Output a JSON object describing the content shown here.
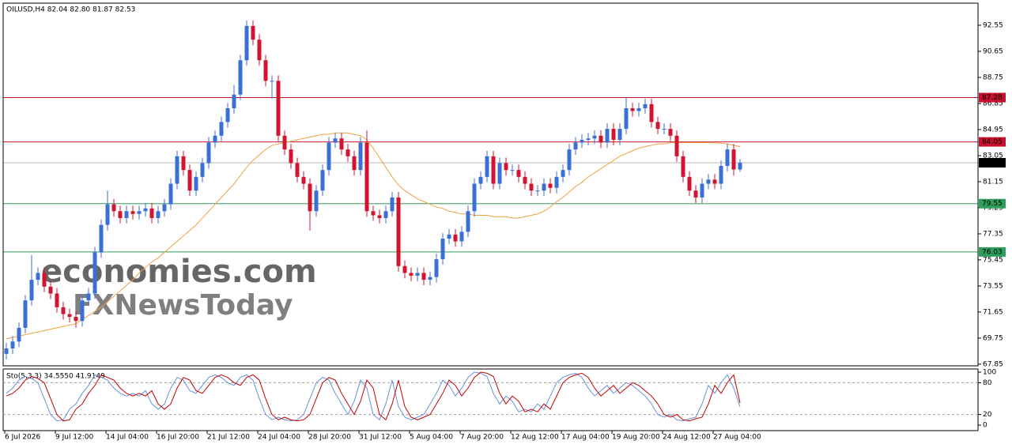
{
  "chart_data": {
    "type": "candlestick",
    "title": "OILUSD,H4  82.04 82.80 81.87 82.53",
    "watermark": [
      "economies.com",
      "FXNewsToday"
    ],
    "categories": [
      "6 Jul 2026",
      null,
      null,
      null,
      null,
      null,
      null,
      null,
      "9 Jul 12:00",
      null,
      null,
      null,
      null,
      null,
      null,
      null,
      "14 Jul 04:00",
      null,
      null,
      null,
      null,
      null,
      null,
      null,
      "16 Jul 20:00",
      null,
      null,
      null,
      null,
      null,
      null,
      null,
      "21 Jul 12:00",
      null,
      null,
      null,
      null,
      null,
      null,
      null,
      "24 Jul 04:00",
      null,
      null,
      null,
      null,
      null,
      null,
      null,
      "28 Jul 20:00",
      null,
      null,
      null,
      null,
      null,
      null,
      null,
      "31 Jul 12:00",
      null,
      null,
      null,
      null,
      null,
      null,
      null,
      "5 Aug 04:00",
      null,
      null,
      null,
      null,
      null,
      null,
      null,
      "7 Aug 20:00",
      null,
      null,
      null,
      null,
      null,
      null,
      null,
      "12 Aug 12:00",
      null,
      null,
      null,
      null,
      null,
      null,
      null,
      "17 Aug 04:00",
      null,
      null,
      null,
      null,
      null,
      null,
      null,
      "19 Aug 20:00",
      null,
      null,
      null,
      null,
      null,
      null,
      null,
      "24 Aug 12:00",
      null,
      null,
      null,
      null,
      null,
      null,
      null,
      "27 Aug 04:00",
      null,
      null,
      null,
      null
    ],
    "open": [
      68.6,
      69.0,
      69.5,
      70.5,
      72.5,
      74.0,
      74.5,
      73.5,
      73.0,
      72.0,
      71.5,
      71.3,
      71.0,
      72.5,
      73.0,
      76.0,
      78.0,
      79.5,
      79.0,
      78.5,
      79.0,
      78.8,
      79.0,
      79.2,
      78.5,
      79.0,
      79.5,
      81.0,
      83.0,
      82.0,
      80.5,
      81.5,
      82.5,
      84.0,
      84.5,
      85.5,
      86.5,
      87.5,
      90.0,
      92.5,
      91.5,
      90.0,
      88.5,
      88.5,
      84.5,
      83.5,
      82.5,
      81.5,
      81.0,
      79.0,
      80.5,
      82.0,
      84.0,
      84.3,
      83.5,
      83.0,
      82.0,
      84.0,
      79.0,
      78.7,
      78.5,
      79.0,
      80.0,
      75.0,
      74.5,
      74.3,
      74.5,
      74.0,
      74.2,
      75.5,
      77.0,
      77.3,
      76.8,
      77.5,
      79.0,
      81.0,
      81.5,
      83.0,
      81.0,
      82.5,
      82.0,
      82.0,
      81.5,
      81.0,
      80.5,
      80.5,
      81.0,
      80.7,
      81.5,
      82.0,
      83.5,
      84.0,
      84.2,
      84.3,
      84.5,
      84.0,
      85.0,
      84.2,
      85.0,
      86.5,
      86.3,
      86.5,
      86.8,
      85.5,
      85.0,
      85.0,
      84.5,
      83.0,
      81.5,
      80.5,
      80.0,
      81.0,
      81.3,
      81.0,
      82.3,
      83.5,
      82.04
    ],
    "high": [
      69.4,
      69.9,
      70.9,
      72.9,
      75.8,
      74.9,
      74.9,
      73.9,
      73.4,
      72.4,
      71.9,
      71.7,
      72.9,
      73.4,
      76.4,
      78.4,
      80.5,
      79.9,
      79.4,
      79.4,
      79.4,
      79.4,
      79.6,
      79.6,
      79.4,
      79.9,
      81.4,
      83.4,
      83.4,
      82.4,
      81.9,
      82.9,
      84.4,
      84.9,
      85.9,
      86.9,
      88.2,
      90.4,
      92.9,
      92.9,
      91.9,
      90.4,
      88.9,
      88.9,
      84.9,
      83.9,
      82.9,
      81.9,
      81.4,
      80.9,
      82.4,
      84.4,
      84.7,
      84.7,
      83.9,
      83.4,
      84.4,
      84.9,
      79.4,
      79.1,
      79.4,
      80.4,
      80.4,
      75.4,
      74.9,
      74.9,
      74.9,
      74.6,
      75.9,
      77.4,
      77.7,
      77.7,
      77.9,
      79.4,
      81.4,
      81.9,
      83.4,
      83.4,
      82.9,
      82.9,
      82.4,
      82.4,
      81.9,
      81.4,
      80.9,
      81.4,
      81.4,
      81.9,
      82.4,
      83.9,
      84.4,
      84.6,
      84.7,
      84.9,
      84.9,
      85.4,
      85.4,
      85.4,
      87.3,
      86.9,
      86.9,
      87.2,
      87.2,
      85.9,
      85.4,
      85.4,
      84.9,
      83.4,
      81.9,
      80.9,
      81.4,
      81.7,
      81.7,
      82.7,
      83.9,
      83.9,
      82.8
    ],
    "low": [
      68.2,
      68.6,
      69.1,
      70.1,
      72.1,
      73.6,
      73.1,
      72.6,
      71.6,
      71.1,
      70.9,
      70.5,
      70.6,
      72.1,
      72.6,
      75.6,
      77.6,
      78.6,
      78.1,
      78.1,
      78.4,
      78.4,
      78.6,
      78.1,
      78.1,
      78.6,
      79.1,
      80.6,
      81.6,
      80.1,
      80.1,
      81.1,
      82.1,
      83.6,
      84.1,
      85.1,
      86.1,
      87.1,
      89.6,
      91.1,
      89.6,
      88.1,
      87.2,
      84.1,
      83.1,
      82.1,
      81.1,
      80.6,
      77.6,
      78.6,
      80.1,
      81.6,
      83.6,
      83.1,
      82.6,
      81.6,
      81.6,
      78.6,
      78.3,
      78.1,
      78.1,
      78.6,
      74.6,
      74.1,
      73.9,
      73.9,
      73.6,
      73.6,
      73.8,
      75.1,
      76.6,
      76.4,
      76.4,
      77.1,
      78.6,
      80.6,
      81.1,
      80.6,
      80.6,
      81.6,
      81.6,
      81.1,
      80.6,
      80.1,
      80.1,
      80.1,
      80.3,
      80.3,
      81.1,
      81.6,
      83.1,
      83.6,
      83.8,
      83.9,
      83.6,
      83.6,
      83.8,
      83.8,
      84.6,
      85.9,
      85.9,
      86.1,
      85.1,
      84.6,
      84.6,
      84.1,
      82.6,
      81.1,
      80.1,
      79.6,
      79.6,
      80.6,
      80.6,
      80.6,
      81.9,
      81.6,
      81.87
    ],
    "close": [
      69.0,
      69.5,
      70.5,
      72.5,
      74.0,
      74.5,
      73.5,
      73.0,
      72.0,
      71.5,
      71.3,
      71.0,
      72.5,
      73.0,
      76.0,
      78.0,
      79.5,
      79.0,
      78.5,
      79.0,
      78.8,
      79.0,
      79.2,
      78.5,
      79.0,
      79.5,
      81.0,
      83.0,
      82.0,
      80.5,
      81.5,
      82.5,
      84.0,
      84.5,
      85.5,
      86.5,
      87.5,
      90.0,
      92.5,
      91.5,
      90.0,
      88.5,
      88.5,
      84.5,
      83.5,
      82.5,
      81.5,
      81.0,
      79.0,
      80.5,
      82.0,
      84.0,
      84.3,
      83.5,
      83.0,
      82.0,
      84.0,
      79.0,
      78.7,
      78.5,
      79.0,
      80.0,
      75.0,
      74.5,
      74.3,
      74.5,
      74.0,
      74.2,
      75.5,
      77.0,
      77.3,
      76.8,
      77.5,
      79.0,
      81.0,
      81.5,
      83.0,
      81.0,
      82.5,
      82.0,
      82.0,
      81.5,
      81.0,
      80.5,
      80.5,
      81.0,
      80.7,
      81.5,
      82.0,
      83.5,
      84.0,
      84.2,
      84.3,
      84.5,
      84.0,
      85.0,
      84.2,
      85.0,
      86.5,
      86.3,
      86.5,
      86.8,
      85.5,
      85.0,
      85.0,
      84.5,
      83.0,
      81.5,
      80.5,
      80.0,
      81.0,
      81.3,
      81.0,
      82.3,
      83.5,
      82.04,
      82.53
    ],
    "up_color": "#3b6fd4",
    "down_color": "#d3132f",
    "moving_average_color": "#f0a040",
    "moving_average": [
      69.7,
      69.8,
      69.9,
      70.0,
      70.1,
      70.2,
      70.3,
      70.4,
      70.5,
      70.6,
      70.7,
      70.8,
      71.1,
      71.4,
      71.7,
      72.0,
      72.4,
      72.8,
      73.2,
      73.6,
      74.0,
      74.5,
      74.9,
      75.3,
      75.6,
      76.0,
      76.4,
      76.8,
      77.2,
      77.6,
      78.0,
      78.5,
      79.0,
      79.5,
      80.0,
      80.5,
      81.0,
      81.6,
      82.2,
      82.7,
      83.1,
      83.5,
      83.8,
      83.9,
      84.0,
      84.1,
      84.2,
      84.3,
      84.4,
      84.5,
      84.6,
      84.6,
      84.7,
      84.7,
      84.7,
      84.6,
      84.5,
      84.2,
      83.6,
      82.9,
      82.2,
      81.5,
      80.9,
      80.5,
      80.2,
      79.9,
      79.7,
      79.5,
      79.3,
      79.2,
      79.0,
      78.9,
      78.8,
      78.8,
      78.7,
      78.7,
      78.7,
      78.6,
      78.6,
      78.6,
      78.5,
      78.5,
      78.6,
      78.7,
      78.8,
      79.0,
      79.3,
      79.7,
      80.0,
      80.4,
      80.8,
      81.1,
      81.5,
      81.8,
      82.1,
      82.4,
      82.7,
      83.0,
      83.2,
      83.4,
      83.6,
      83.7,
      83.8,
      83.9,
      83.9,
      84.0,
      84.0,
      84.0,
      84.0,
      84.0,
      84.0,
      84.0,
      84.0,
      83.95,
      83.9,
      83.8,
      83.7
    ],
    "ylim": [
      67.73,
      94.16
    ],
    "yticks": [
      92.55,
      90.65,
      88.75,
      86.85,
      84.95,
      83.05,
      81.15,
      79.25,
      77.35,
      75.45,
      73.55,
      71.65,
      69.75,
      67.85
    ],
    "levels": [
      {
        "value": 87.28,
        "color": "#c8102e"
      },
      {
        "value": 84.05,
        "color": "#c8102e"
      },
      {
        "value": 79.55,
        "color": "#2e9e5b"
      },
      {
        "value": 76.03,
        "color": "#2e9e5b"
      }
    ],
    "indicator": {
      "label": "Sto(5,3,3) 34.5550 41.9149",
      "ylim": [
        -10.4,
        106
      ],
      "yticks": [
        100,
        80,
        20,
        0
      ],
      "levels": [
        80,
        20
      ],
      "main": {
        "color": "#6a8fd8",
        "values": [
          60,
          70,
          85,
          92,
          88,
          80,
          50,
          20,
          8,
          10,
          30,
          40,
          60,
          75,
          95,
          90,
          85,
          70,
          60,
          55,
          60,
          55,
          65,
          40,
          30,
          40,
          70,
          90,
          85,
          65,
          60,
          75,
          90,
          95,
          90,
          80,
          75,
          90,
          95,
          85,
          50,
          20,
          10,
          15,
          10,
          8,
          10,
          20,
          50,
          80,
          90,
          85,
          60,
          40,
          20,
          45,
          85,
          70,
          20,
          10,
          40,
          85,
          35,
          15,
          10,
          15,
          20,
          40,
          60,
          85,
          75,
          55,
          70,
          90,
          100,
          98,
          92,
          60,
          40,
          55,
          45,
          25,
          30,
          25,
          40,
          30,
          55,
          80,
          90,
          95,
          98,
          90,
          70,
          55,
          65,
          75,
          60,
          70,
          80,
          75,
          65,
          55,
          40,
          20,
          15,
          20,
          10,
          8,
          12,
          15,
          40,
          75,
          60,
          80,
          95,
          70,
          34.555
        ]
      },
      "signal": {
        "color": "#c00000",
        "values": [
          55,
          60,
          70,
          85,
          92,
          88,
          80,
          50,
          20,
          8,
          10,
          30,
          40,
          60,
          75,
          95,
          90,
          85,
          70,
          60,
          55,
          60,
          55,
          65,
          40,
          30,
          40,
          70,
          90,
          85,
          65,
          60,
          75,
          90,
          95,
          90,
          80,
          75,
          90,
          95,
          85,
          50,
          20,
          10,
          15,
          10,
          8,
          10,
          20,
          50,
          80,
          90,
          85,
          60,
          40,
          20,
          45,
          85,
          70,
          20,
          10,
          40,
          85,
          35,
          15,
          10,
          15,
          20,
          40,
          60,
          85,
          75,
          55,
          70,
          90,
          100,
          98,
          92,
          60,
          40,
          55,
          45,
          25,
          30,
          25,
          40,
          30,
          55,
          80,
          90,
          95,
          98,
          90,
          70,
          55,
          65,
          75,
          60,
          70,
          80,
          75,
          65,
          55,
          40,
          20,
          15,
          20,
          10,
          8,
          12,
          15,
          40,
          75,
          60,
          80,
          95,
          41.9149
        ]
      }
    }
  }
}
